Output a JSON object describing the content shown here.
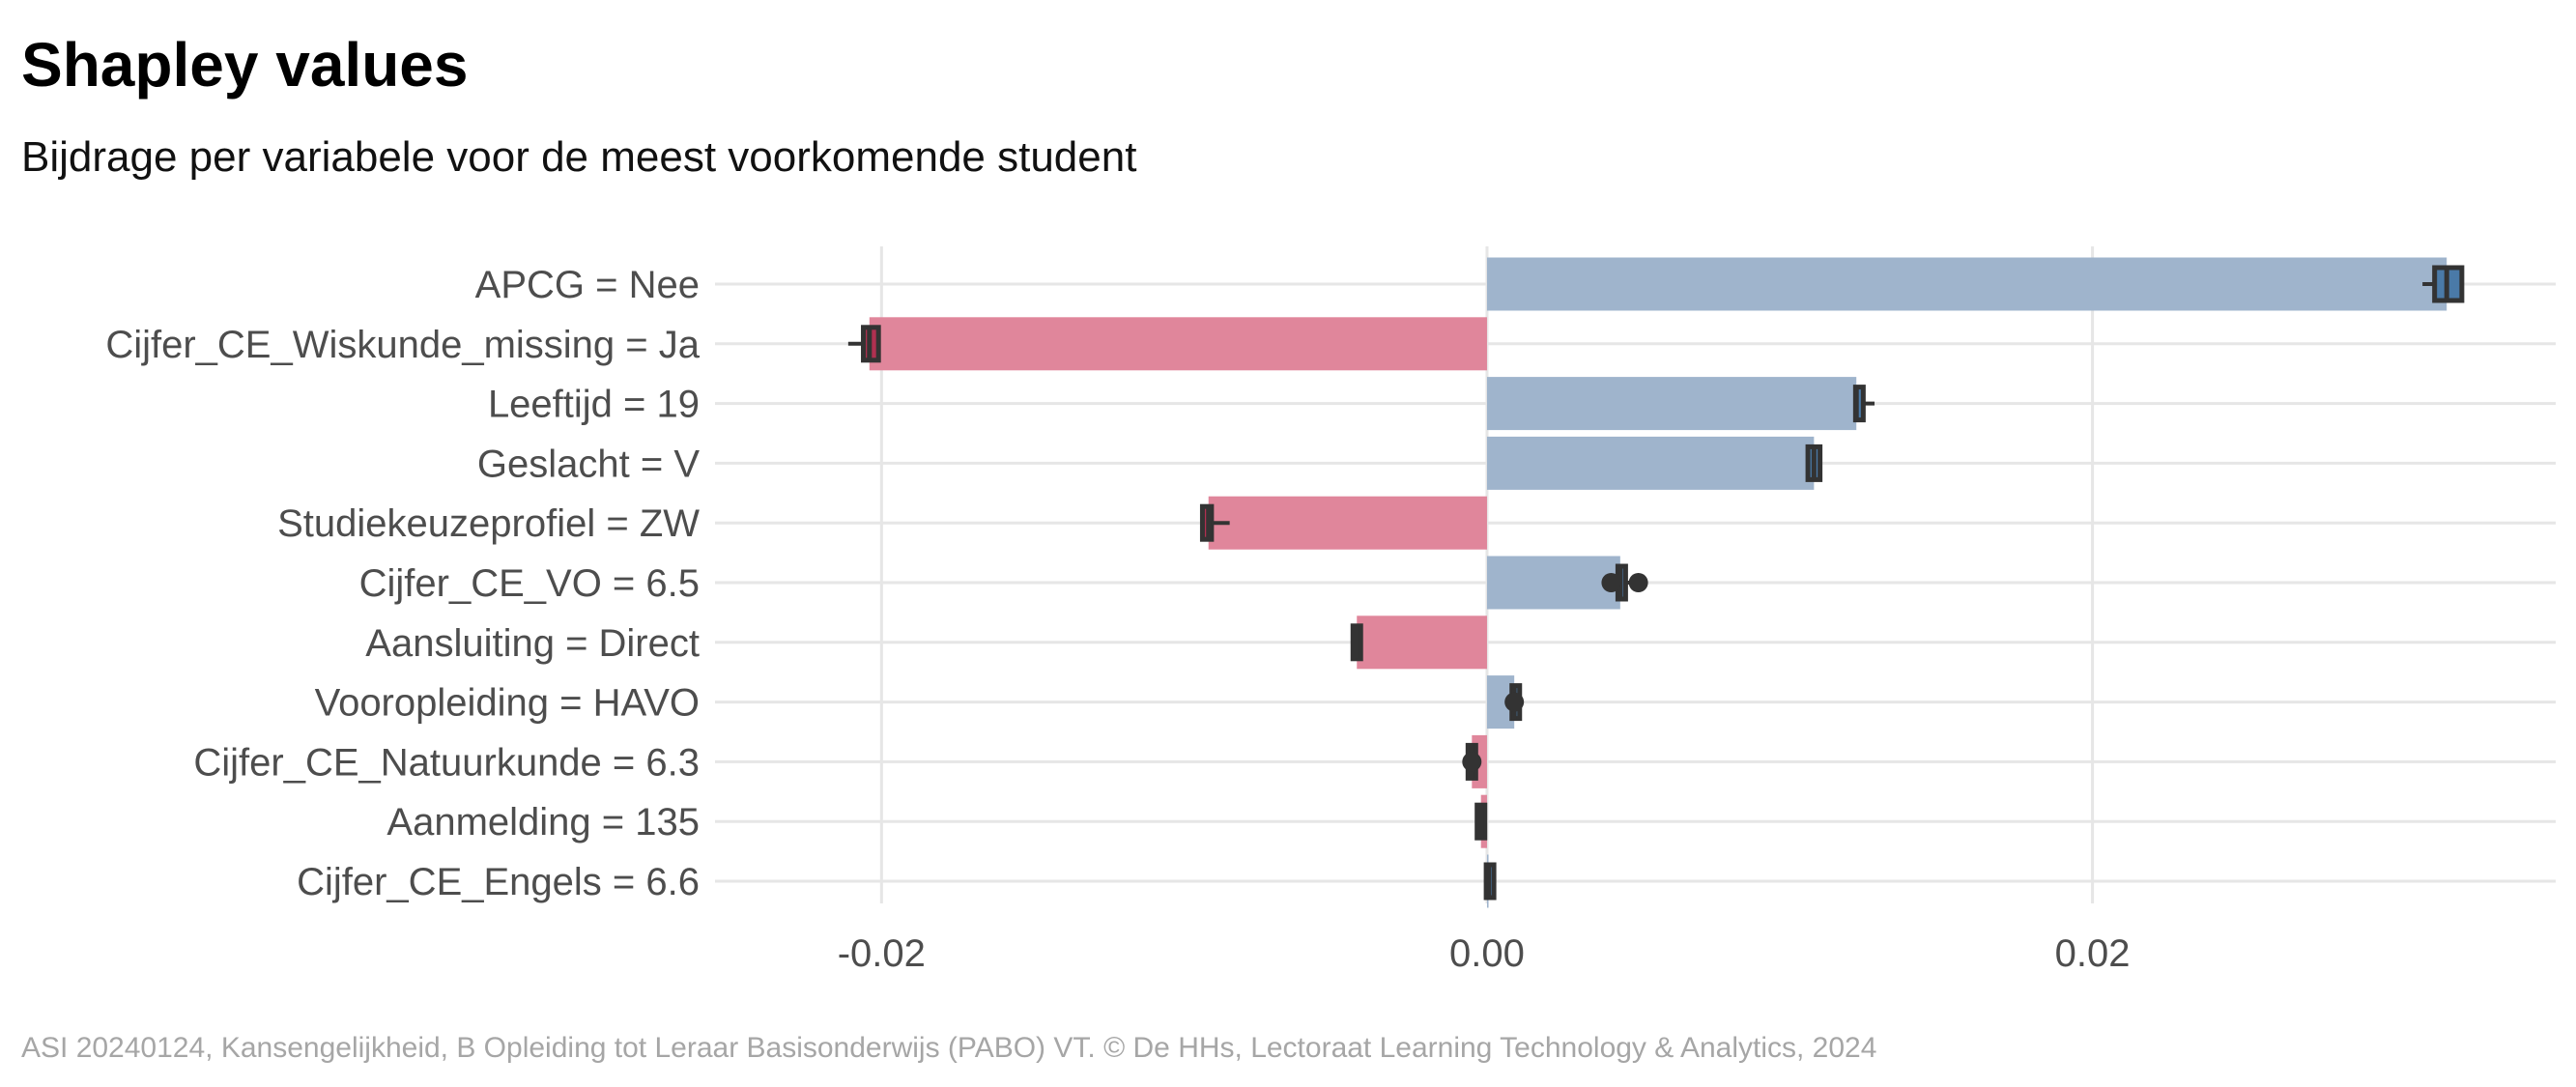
{
  "title": "Shapley values",
  "subtitle": "Bijdrage per variabele voor de meest voorkomende student",
  "caption": "ASI 20240124, Kansengelijkheid, B Opleiding tot Leraar Basisonderwijs (PABO) VT. © De HHs, Lectoraat Learning Technology & Analytics, 2024",
  "colors": {
    "positive": "#9fb4cc",
    "negative": "#e0869b",
    "marker": "#333333",
    "grid": "#e6e6e6"
  },
  "chart_data": {
    "type": "bar",
    "orientation": "horizontal",
    "xlim": [
      -0.0255,
      0.0353
    ],
    "xticks": [
      {
        "value": -0.02,
        "label": "-0.02"
      },
      {
        "value": 0.0,
        "label": "0.00"
      },
      {
        "value": 0.02,
        "label": "0.02"
      }
    ],
    "grid": true,
    "bars": [
      {
        "label": "APCG = Nee",
        "value": 0.0317,
        "box": [
          0.0313,
          0.0322
        ],
        "whisker": [
          0.0309,
          0.0322
        ],
        "points": []
      },
      {
        "label": "Cijfer_CE_Wiskunde_missing = Ja",
        "value": -0.0204,
        "box": [
          -0.0206,
          -0.0201
        ],
        "whisker": [
          -0.0211,
          -0.0201
        ],
        "points": []
      },
      {
        "label": "Leeftijd = 19",
        "value": 0.0122,
        "box": [
          0.0122,
          0.0124
        ],
        "whisker": [
          0.0121,
          0.0128
        ],
        "points": []
      },
      {
        "label": "Geslacht = V",
        "value": 0.0108,
        "box": [
          0.0106,
          0.011
        ],
        "whisker": [
          0.0106,
          0.011
        ],
        "points": []
      },
      {
        "label": "Studiekeuzeprofiel = ZW",
        "value": -0.0092,
        "box": [
          -0.0094,
          -0.0091
        ],
        "whisker": [
          -0.0094,
          -0.0085
        ],
        "points": []
      },
      {
        "label": "Cijfer_CE_VO = 6.5",
        "value": 0.0044,
        "box": [
          0.0044,
          0.0045
        ],
        "whisker": [
          0.0041,
          0.0047
        ],
        "points": [
          0.0041,
          0.005
        ]
      },
      {
        "label": "Aansluiting = Direct",
        "value": -0.0043,
        "box": [
          -0.0043,
          -0.0043
        ],
        "whisker": [
          -0.0043,
          -0.0043
        ],
        "points": []
      },
      {
        "label": "Vooropleiding = HAVO",
        "value": 0.0009,
        "box": [
          0.0009,
          0.001
        ],
        "whisker": [
          0.0009,
          0.001
        ],
        "points": [
          0.0009
        ]
      },
      {
        "label": "Cijfer_CE_Natuurkunde = 6.3",
        "value": -0.0005,
        "box": [
          -0.0005,
          -0.0005
        ],
        "whisker": [
          -0.0006,
          -0.0004
        ],
        "points": [
          -0.0005
        ]
      },
      {
        "label": "Aanmelding = 135",
        "value": -0.0002,
        "box": [
          -0.0002,
          -0.0002
        ],
        "whisker": [
          -0.0002,
          -0.0002
        ],
        "points": []
      },
      {
        "label": "Cijfer_CE_Engels = 6.6",
        "value": 5e-05,
        "box": [
          0.0,
          0.0002
        ],
        "whisker": [
          0.0,
          0.0002
        ],
        "points": []
      }
    ]
  }
}
